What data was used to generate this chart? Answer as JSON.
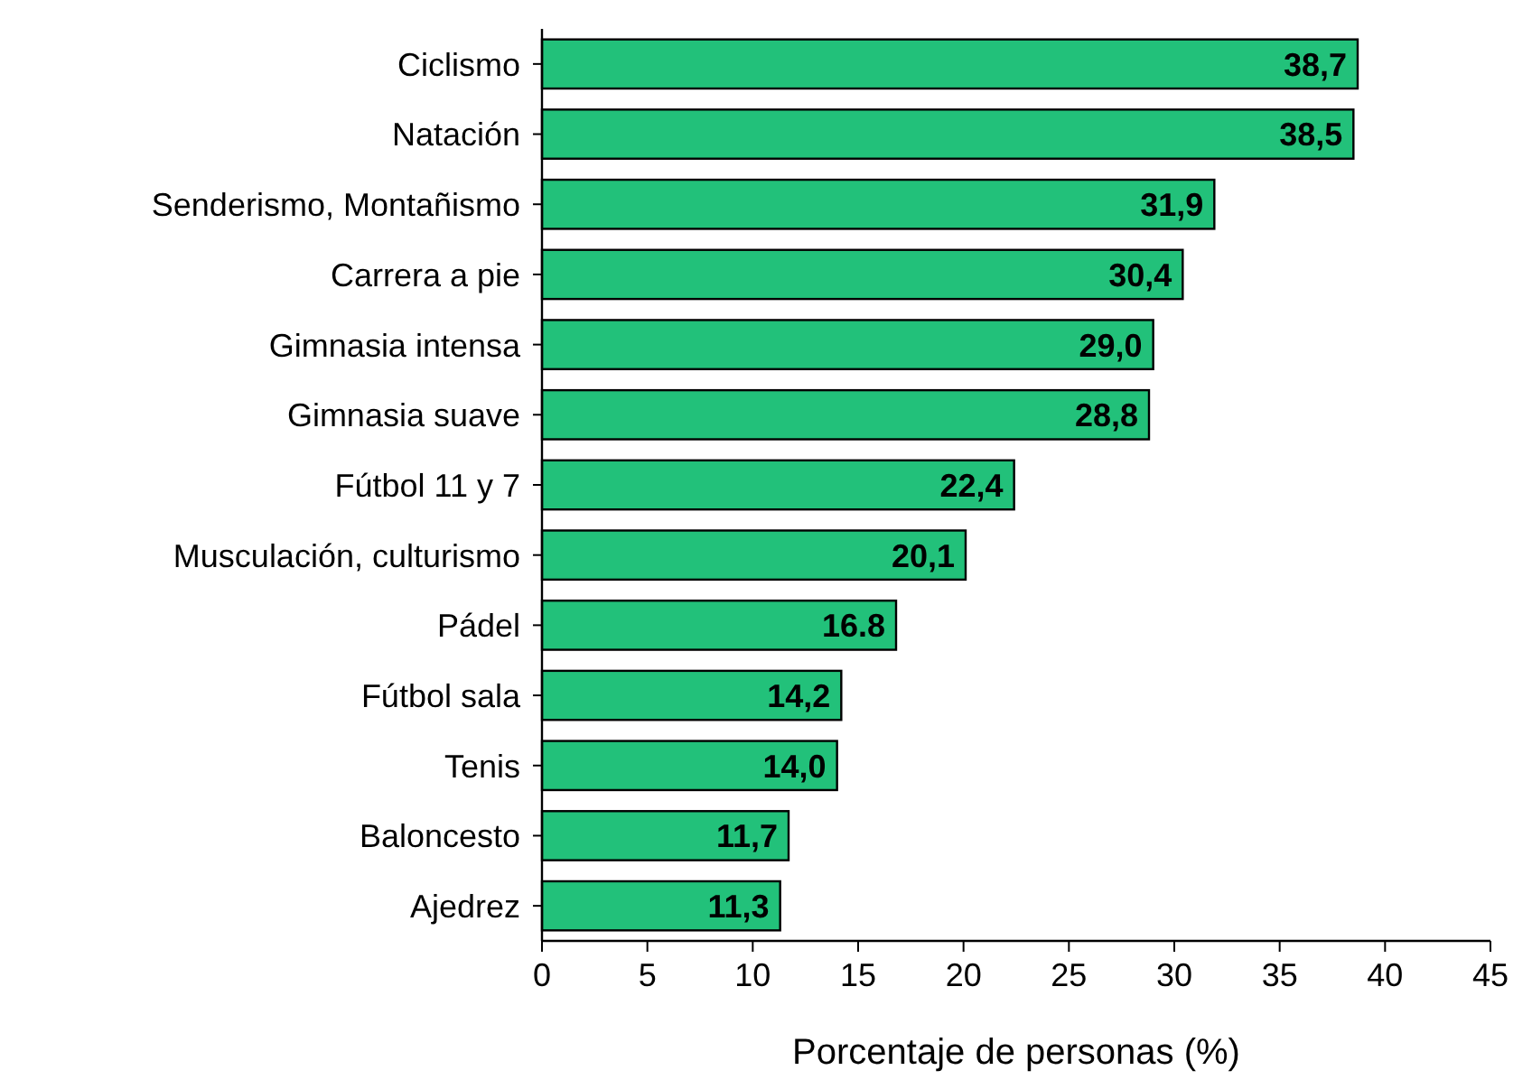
{
  "chart_data": {
    "type": "bar",
    "orientation": "horizontal",
    "xlabel": "Porcentaje de personas (%)",
    "categories": [
      "Ciclismo",
      "Natación",
      "Senderismo, Montañismo",
      "Carrera a pie",
      "Gimnasia intensa",
      "Gimnasia suave",
      "Fútbol 11 y 7",
      "Musculación, culturismo",
      "Pádel",
      "Fútbol sala",
      "Tenis",
      "Baloncesto",
      "Ajedrez"
    ],
    "values": [
      38.7,
      38.5,
      31.9,
      30.4,
      29.0,
      28.8,
      22.4,
      20.1,
      16.8,
      14.2,
      14.0,
      11.7,
      11.3
    ],
    "value_labels": [
      "38,7",
      "38,5",
      "31,9",
      "30,4",
      "29,0",
      "28,8",
      "22,4",
      "20,1",
      "16.8",
      "14,2",
      "14,0",
      "11,7",
      "11,3"
    ],
    "color": "#22c17a",
    "xlim": [
      0,
      45
    ],
    "xticks": [
      0,
      5,
      10,
      15,
      20,
      25,
      30,
      35,
      40,
      45
    ],
    "grid": false
  }
}
